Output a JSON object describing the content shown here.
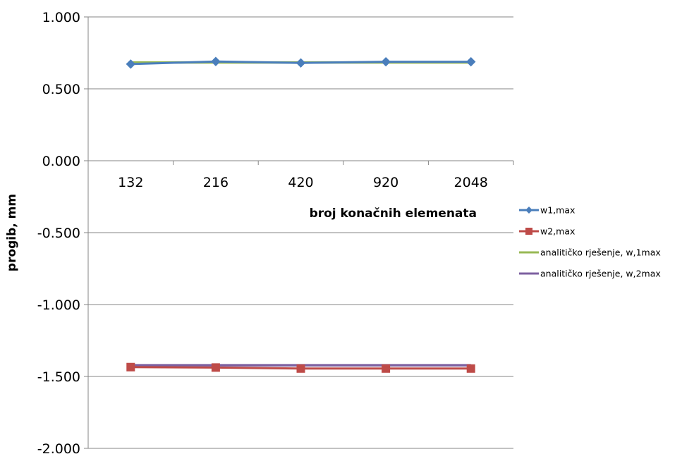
{
  "chart_data": {
    "type": "line",
    "title": "",
    "xlabel": "broj konačnih elemenata",
    "ylabel": "progib, mm",
    "categories": [
      "132",
      "216",
      "420",
      "920",
      "2048"
    ],
    "ylim": [
      -2.0,
      1.0
    ],
    "yticks": [
      1.0,
      0.5,
      0.0,
      -0.5,
      -1.0,
      -1.5,
      -2.0
    ],
    "ytick_labels": [
      "1.000",
      "0.500",
      "0.000",
      "-0.500",
      "-1.000",
      "-1.500",
      "-2.000"
    ],
    "grid": "horizontal",
    "legend_position": "right",
    "series": [
      {
        "name": "w1,max",
        "values": [
          0.672,
          0.69,
          0.68,
          0.688,
          0.688
        ],
        "color": "#4a7ebb",
        "marker": "diamond"
      },
      {
        "name": "w2,max",
        "values": [
          -1.435,
          -1.438,
          -1.445,
          -1.445,
          -1.445
        ],
        "color": "#be4b48",
        "marker": "square"
      },
      {
        "name": "analitičko rješenje, w,1max",
        "values": [
          0.683,
          0.683,
          0.683,
          0.683,
          0.683
        ],
        "color": "#98b954",
        "marker": "none"
      },
      {
        "name": "analitičko rješenje, w,2max",
        "values": [
          -1.422,
          -1.422,
          -1.422,
          -1.422,
          -1.422
        ],
        "color": "#7d60a0",
        "marker": "none"
      }
    ]
  }
}
